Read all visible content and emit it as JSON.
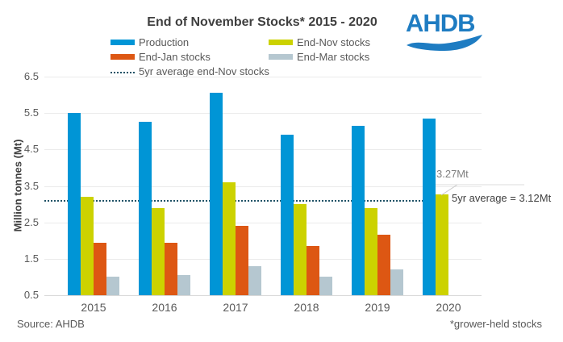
{
  "title": "End of November Stocks* 2015 - 2020",
  "logo": {
    "text": "AHDB",
    "color": "#1e7cc2"
  },
  "legend": {
    "items": [
      {
        "label": "Production",
        "color": "#0095d6",
        "type": "swatch"
      },
      {
        "label": "End-Jan stocks",
        "color": "#dd5713",
        "type": "swatch"
      },
      {
        "label": "5yr average end-Nov stocks",
        "color": "#1f5266",
        "type": "dotted"
      },
      {
        "label": "End-Nov stocks",
        "color": "#ccd200",
        "type": "swatch"
      },
      {
        "label": "End-Mar stocks",
        "color": "#b5c7d0",
        "type": "swatch"
      }
    ]
  },
  "chart_data": {
    "type": "bar",
    "title": "End of November Stocks* 2015 - 2020",
    "xlabel": "",
    "ylabel": "Million tonnes (Mt)",
    "ylim": [
      0.5,
      6.5
    ],
    "yticks": [
      6.5,
      5.5,
      4.5,
      3.5,
      2.5,
      1.5,
      0.5
    ],
    "grid": true,
    "legend_position": "top",
    "categories": [
      "2015",
      "2016",
      "2017",
      "2018",
      "2019",
      "2020"
    ],
    "series": [
      {
        "name": "Production",
        "color": "#0095d6",
        "values": [
          5.5,
          5.25,
          6.05,
          4.9,
          5.15,
          5.35
        ]
      },
      {
        "name": "End-Nov stocks",
        "color": "#ccd200",
        "values": [
          3.2,
          2.9,
          3.6,
          3.0,
          2.9,
          3.27
        ]
      },
      {
        "name": "End-Jan stocks",
        "color": "#dd5713",
        "values": [
          1.95,
          1.95,
          2.4,
          1.85,
          2.15,
          null
        ]
      },
      {
        "name": "End-Mar stocks",
        "color": "#b5c7d0",
        "values": [
          1.0,
          1.05,
          1.3,
          1.0,
          1.2,
          null
        ]
      }
    ],
    "average_line": {
      "label": "5yr average end-Nov stocks",
      "value": 3.12,
      "color": "#1f5266"
    },
    "annotations": [
      {
        "text": "3.27Mt",
        "target": "End-Nov stocks 2020"
      },
      {
        "text": "5yr average = 3.12Mt",
        "target": "average line"
      }
    ]
  },
  "footer": {
    "source": "Source: AHDB",
    "note": "*grower-held stocks"
  }
}
